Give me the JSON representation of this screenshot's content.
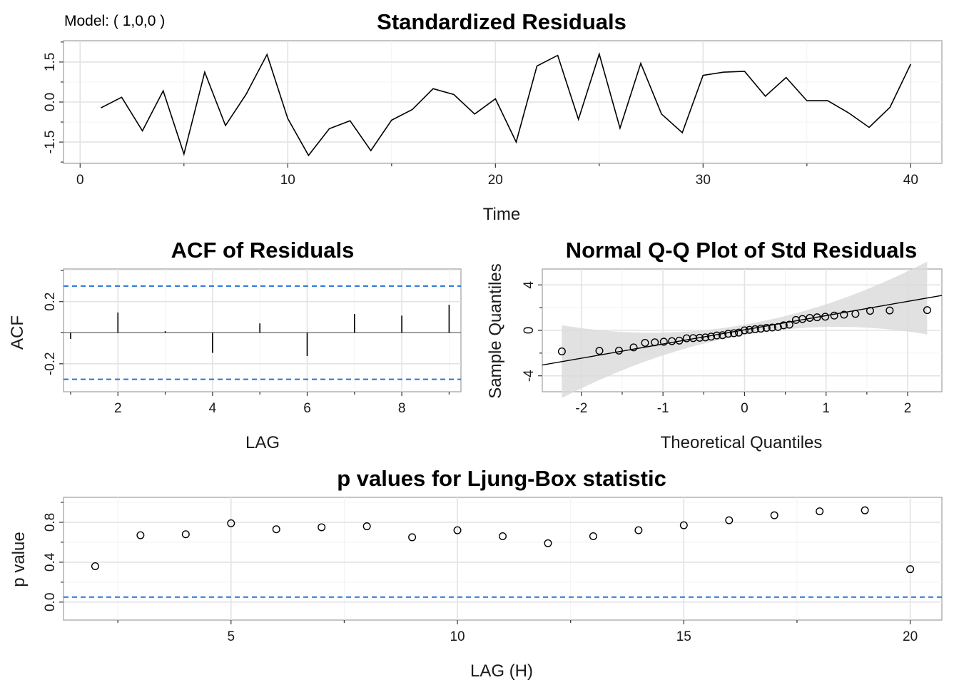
{
  "model_label": "Model: ( 1,0,0 )",
  "colors": {
    "line": "#000000",
    "ci_dashed": "#1f6ed4",
    "band": "#d9d9d9",
    "grid": "#e3e3e3"
  },
  "chart_data": [
    {
      "id": "std_residuals",
      "type": "line",
      "title": "Standardized Residuals",
      "xlabel": "Time",
      "ylabel": "",
      "xlim": [
        -0.8,
        41.5
      ],
      "ylim": [
        -2.3,
        2.3
      ],
      "xticks": [
        0,
        10,
        20,
        30,
        40
      ],
      "xtick_labels": [
        "0",
        "10",
        "20",
        "30",
        "40"
      ],
      "yticks": [
        -1.5,
        0,
        1.5
      ],
      "ytick_labels": [
        "-1.5",
        "0.0",
        "1.5"
      ],
      "x": [
        1,
        2,
        3,
        4,
        5,
        6,
        7,
        8,
        9,
        10,
        11,
        12,
        13,
        14,
        15,
        16,
        17,
        18,
        19,
        20,
        21,
        22,
        23,
        24,
        25,
        26,
        27,
        28,
        29,
        30,
        31,
        32,
        33,
        34,
        35,
        36,
        37,
        38,
        39,
        40
      ],
      "y": [
        -0.22,
        0.18,
        -1.08,
        0.42,
        -1.95,
        1.12,
        -0.88,
        0.3,
        1.78,
        -0.62,
        -2.0,
        -1.0,
        -0.7,
        -1.82,
        -0.68,
        -0.28,
        0.5,
        0.28,
        -0.45,
        0.12,
        -1.5,
        1.35,
        1.75,
        -0.65,
        1.8,
        -0.98,
        1.45,
        -0.45,
        -1.15,
        1.0,
        1.12,
        1.15,
        0.22,
        0.92,
        0.05,
        0.05,
        -0.4,
        -0.95,
        -0.2,
        1.42
      ]
    },
    {
      "id": "acf",
      "type": "bar",
      "title": "ACF of Residuals",
      "xlabel": "LAG",
      "ylabel": "ACF",
      "xlim": [
        0.85,
        9.25
      ],
      "ylim": [
        -0.38,
        0.41
      ],
      "xticks": [
        2,
        4,
        6,
        8
      ],
      "xtick_labels": [
        "2",
        "4",
        "6",
        "8"
      ],
      "yticks": [
        -0.2,
        0.2
      ],
      "ytick_labels": [
        "-0.2",
        "0.2"
      ],
      "lags": [
        1,
        2,
        3,
        4,
        5,
        6,
        7,
        8,
        9
      ],
      "values": [
        -0.04,
        0.13,
        0.01,
        -0.13,
        0.06,
        -0.15,
        0.12,
        0.11,
        0.18
      ],
      "ci": 0.3
    },
    {
      "id": "qq",
      "type": "scatter",
      "title": "Normal Q-Q Plot of Std Residuals",
      "xlabel": "Theoretical Quantiles",
      "ylabel": "Sample Quantiles",
      "xlim": [
        -2.48,
        2.42
      ],
      "ylim": [
        -5.4,
        5.4
      ],
      "xticks": [
        -2,
        -1,
        0,
        1,
        2
      ],
      "xtick_labels": [
        "-2",
        "-1",
        "0",
        "1",
        "2"
      ],
      "yticks": [
        -4,
        0,
        4
      ],
      "ytick_labels": [
        "-4",
        "0",
        "4"
      ],
      "points": [
        [
          -2.24,
          -1.85
        ],
        [
          -1.78,
          -1.8
        ],
        [
          -1.54,
          -1.78
        ],
        [
          -1.36,
          -1.5
        ],
        [
          -1.22,
          -1.1
        ],
        [
          -1.1,
          -1.05
        ],
        [
          -0.99,
          -1.0
        ],
        [
          -0.89,
          -0.95
        ],
        [
          -0.8,
          -0.9
        ],
        [
          -0.71,
          -0.7
        ],
        [
          -0.63,
          -0.68
        ],
        [
          -0.55,
          -0.65
        ],
        [
          -0.48,
          -0.62
        ],
        [
          -0.41,
          -0.55
        ],
        [
          -0.34,
          -0.45
        ],
        [
          -0.27,
          -0.42
        ],
        [
          -0.2,
          -0.3
        ],
        [
          -0.13,
          -0.25
        ],
        [
          -0.07,
          -0.2
        ],
        [
          0.0,
          0.0
        ],
        [
          0.06,
          0.05
        ],
        [
          0.13,
          0.1
        ],
        [
          0.2,
          0.15
        ],
        [
          0.27,
          0.22
        ],
        [
          0.34,
          0.25
        ],
        [
          0.41,
          0.3
        ],
        [
          0.48,
          0.45
        ],
        [
          0.55,
          0.5
        ],
        [
          0.63,
          0.92
        ],
        [
          0.71,
          1.0
        ],
        [
          0.8,
          1.1
        ],
        [
          0.89,
          1.15
        ],
        [
          0.99,
          1.2
        ],
        [
          1.1,
          1.3
        ],
        [
          1.22,
          1.38
        ],
        [
          1.36,
          1.45
        ],
        [
          1.54,
          1.72
        ],
        [
          1.78,
          1.75
        ],
        [
          2.24,
          1.78
        ]
      ],
      "ref_line": {
        "intercept": 0.05,
        "slope": 1.25
      },
      "band": {
        "half_width_at_0": 0.45,
        "curvature": 0.55
      }
    },
    {
      "id": "ljung_box",
      "type": "scatter",
      "title": "p values for Ljung-Box statistic",
      "xlabel": "LAG (H)",
      "ylabel": "p value",
      "xlim": [
        1.3,
        20.7
      ],
      "ylim": [
        -0.18,
        1.05
      ],
      "xticks": [
        5,
        10,
        15,
        20
      ],
      "xtick_labels": [
        "5",
        "10",
        "15",
        "20"
      ],
      "yticks": [
        0.0,
        0.4,
        0.8
      ],
      "ytick_labels": [
        "0.0",
        "0.4",
        "0.8"
      ],
      "x": [
        2,
        3,
        4,
        5,
        6,
        7,
        8,
        9,
        10,
        11,
        12,
        13,
        14,
        15,
        16,
        17,
        18,
        19,
        20
      ],
      "y": [
        0.36,
        0.67,
        0.68,
        0.79,
        0.73,
        0.75,
        0.76,
        0.65,
        0.72,
        0.66,
        0.59,
        0.66,
        0.72,
        0.77,
        0.82,
        0.87,
        0.91,
        0.92,
        0.33
      ],
      "threshold": 0.05
    }
  ]
}
